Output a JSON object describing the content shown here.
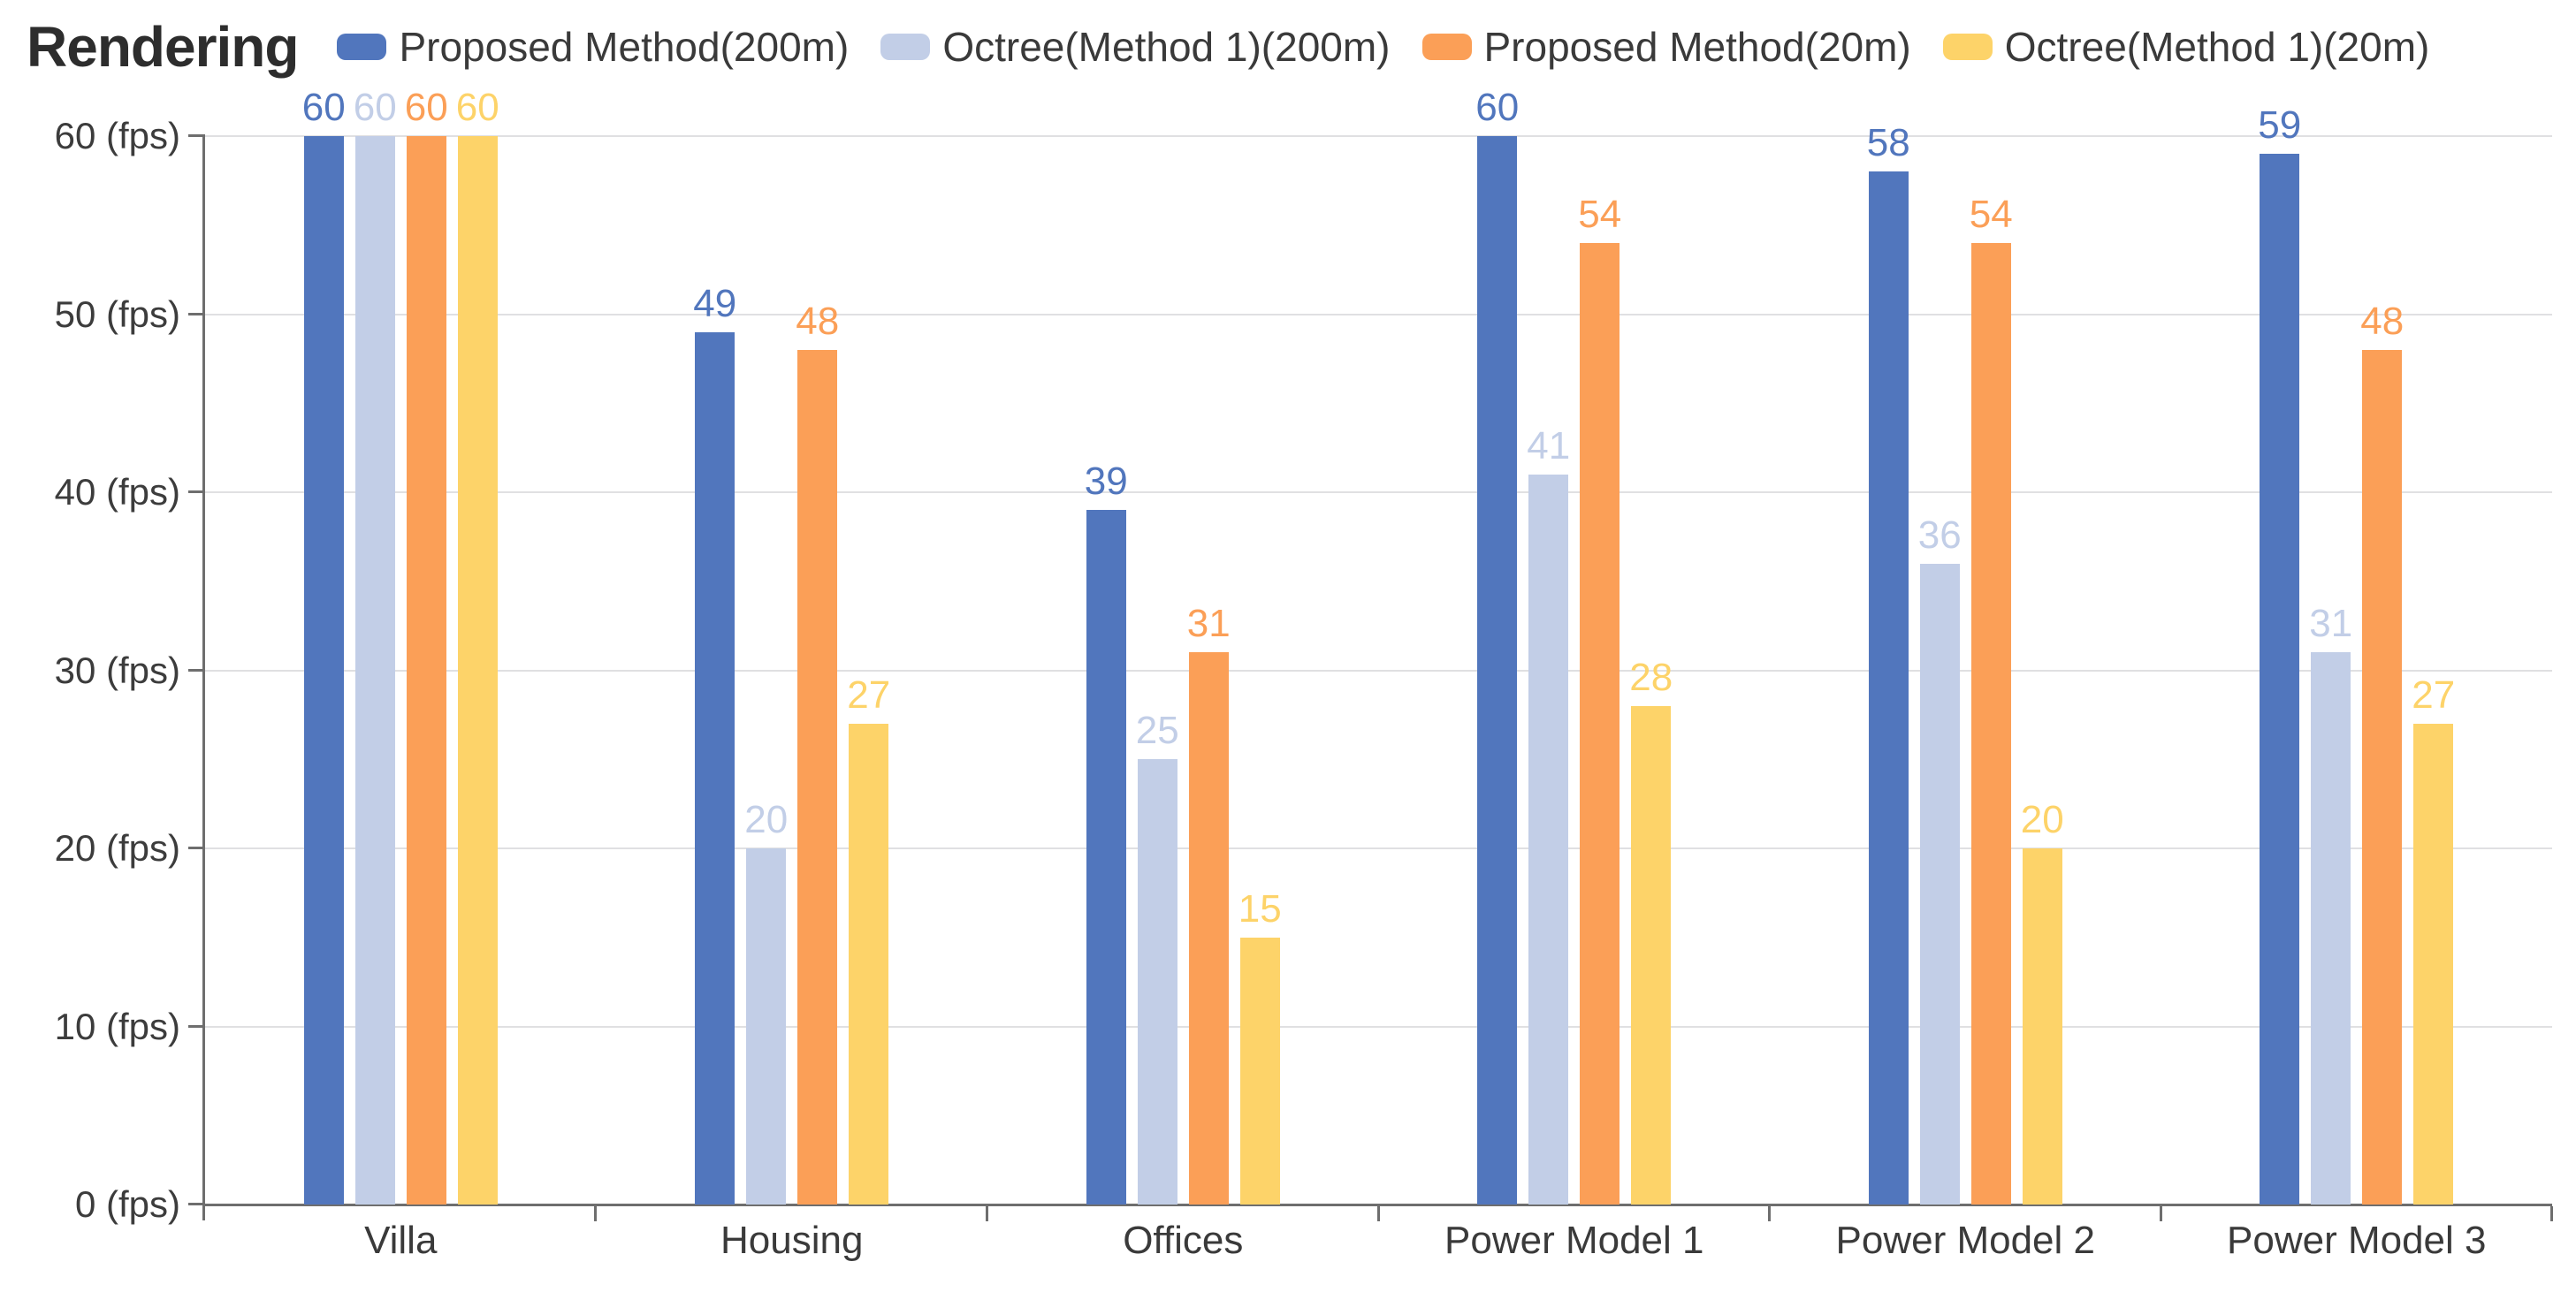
{
  "title": "Rendering",
  "chart_data": {
    "type": "bar",
    "title": "Rendering",
    "categories": [
      "Villa",
      "Housing",
      "Offices",
      "Power Model 1",
      "Power Model 2",
      "Power Model 3"
    ],
    "series": [
      {
        "name": "Proposed Method(200m)",
        "color": "#5176BD",
        "values": [
          60,
          49,
          39,
          60,
          58,
          59
        ]
      },
      {
        "name": "Octree(Method 1)(200m)",
        "color": "#C2CEE7",
        "values": [
          60,
          20,
          25,
          41,
          36,
          31
        ]
      },
      {
        "name": "Proposed Method(20m)",
        "color": "#FB9F57",
        "values": [
          60,
          48,
          31,
          54,
          54,
          48
        ]
      },
      {
        "name": "Octree(Method 1)(20m)",
        "color": "#FDD369",
        "values": [
          60,
          27,
          15,
          28,
          20,
          27
        ]
      }
    ],
    "yticks": [
      0,
      10,
      20,
      30,
      40,
      50,
      60
    ],
    "ytick_suffix": " (fps)",
    "ylim": [
      0,
      60
    ],
    "grid": true,
    "legend_position": "top",
    "value_labels": true
  },
  "colors": {
    "axis": "#6e6e6e",
    "grid": "#e0e0e2",
    "text": "#3c3c3c",
    "title": "#2d2d2d"
  }
}
